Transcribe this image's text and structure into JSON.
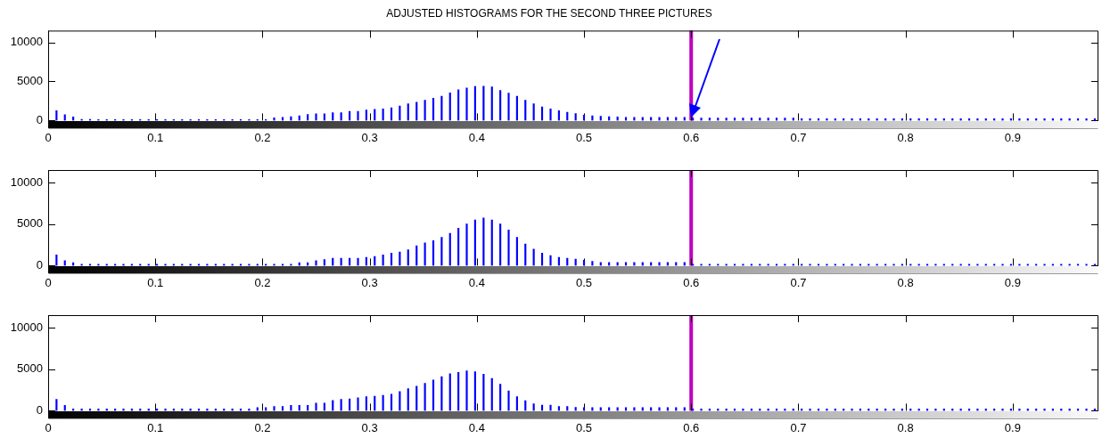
{
  "chart_data": [
    {
      "type": "bar",
      "title": "ADJUSTED HISTOGRAMS FOR THE SECOND THREE PICTURES",
      "x": [
        0.0078,
        0.0156,
        0.0234,
        0.0313,
        0.0391,
        0.0469,
        0.0547,
        0.0625,
        0.0703,
        0.0781,
        0.0859,
        0.0938,
        0.1016,
        0.1094,
        0.1172,
        0.125,
        0.1328,
        0.1406,
        0.1484,
        0.1563,
        0.1641,
        0.1719,
        0.1797,
        0.1875,
        0.1953,
        0.2031,
        0.2109,
        0.2188,
        0.2266,
        0.2344,
        0.2422,
        0.25,
        0.2578,
        0.2656,
        0.2734,
        0.2813,
        0.2891,
        0.2969,
        0.3047,
        0.3125,
        0.3203,
        0.3281,
        0.3359,
        0.3438,
        0.3516,
        0.3594,
        0.3672,
        0.375,
        0.3828,
        0.3906,
        0.3984,
        0.4063,
        0.4141,
        0.4219,
        0.4297,
        0.4375,
        0.4453,
        0.4531,
        0.4609,
        0.4688,
        0.4766,
        0.4844,
        0.4922,
        0.5,
        0.5078,
        0.5156,
        0.5234,
        0.5313,
        0.5391,
        0.5469,
        0.5547,
        0.5625,
        0.5703,
        0.5781,
        0.5859,
        0.5938,
        0.6016,
        0.6094,
        0.6172,
        0.625,
        0.6328,
        0.6406,
        0.6484,
        0.6563,
        0.6641,
        0.6719,
        0.6797,
        0.6875,
        0.6953,
        0.7031,
        0.7109,
        0.7188,
        0.7266,
        0.7344,
        0.7422,
        0.75,
        0.7578,
        0.7656,
        0.7734,
        0.7813,
        0.7891,
        0.7969,
        0.8047,
        0.8125,
        0.8203,
        0.8281,
        0.8359,
        0.8438,
        0.8516,
        0.8594,
        0.8672,
        0.875,
        0.8828,
        0.8906,
        0.8984,
        0.9063,
        0.9141,
        0.9219,
        0.9297,
        0.9375,
        0.9453,
        0.9531,
        0.9609,
        0.9688,
        0.9766
      ],
      "values": [
        1250,
        750,
        450,
        150,
        150,
        120,
        120,
        120,
        120,
        120,
        120,
        120,
        120,
        120,
        120,
        120,
        120,
        120,
        120,
        120,
        120,
        120,
        120,
        120,
        120,
        120,
        350,
        420,
        500,
        620,
        780,
        870,
        870,
        1000,
        1000,
        1170,
        1170,
        1350,
        1420,
        1500,
        1620,
        1850,
        2150,
        2350,
        2600,
        2850,
        3100,
        3550,
        3950,
        4150,
        4350,
        4380,
        4300,
        3850,
        3500,
        3100,
        2600,
        2150,
        1750,
        1500,
        1250,
        1050,
        880,
        700,
        600,
        550,
        500,
        450,
        400,
        400,
        400,
        400,
        400,
        400,
        400,
        400,
        320,
        320,
        320,
        320,
        320,
        320,
        320,
        320,
        320,
        320,
        320,
        320,
        320,
        230,
        230,
        230,
        230,
        230,
        230,
        230,
        230,
        230,
        230,
        230,
        230,
        230,
        230,
        230,
        230,
        230,
        230,
        230,
        230,
        230,
        230,
        230,
        230,
        230,
        230,
        230,
        230,
        230,
        230,
        230,
        230,
        230,
        230,
        230,
        230
      ],
      "color": "#0000ff",
      "xlim": [
        0,
        0.98
      ],
      "xticks": [
        0,
        0.1,
        0.2,
        0.3,
        0.4,
        0.5,
        0.6,
        0.7,
        0.8,
        0.9
      ],
      "ylim": [
        0,
        11500
      ],
      "yticks": [
        0,
        5000,
        10000
      ],
      "ref_lines": [
        {
          "axis": "x",
          "value": 0.6,
          "color": "#c000c0"
        }
      ]
    },
    {
      "type": "bar",
      "x": [
        0.0078,
        0.0156,
        0.0234,
        0.0313,
        0.0391,
        0.0469,
        0.0547,
        0.0625,
        0.0703,
        0.0781,
        0.0859,
        0.0938,
        0.1016,
        0.1094,
        0.1172,
        0.125,
        0.1328,
        0.1406,
        0.1484,
        0.1563,
        0.1641,
        0.1719,
        0.1797,
        0.1875,
        0.1953,
        0.2031,
        0.2109,
        0.2188,
        0.2266,
        0.2344,
        0.2422,
        0.25,
        0.2578,
        0.2656,
        0.2734,
        0.2813,
        0.2891,
        0.2969,
        0.3047,
        0.3125,
        0.3203,
        0.3281,
        0.3359,
        0.3438,
        0.3516,
        0.3594,
        0.3672,
        0.375,
        0.3828,
        0.3906,
        0.3984,
        0.4063,
        0.4141,
        0.4219,
        0.4297,
        0.4375,
        0.4453,
        0.4531,
        0.4609,
        0.4688,
        0.4766,
        0.4844,
        0.4922,
        0.5,
        0.5078,
        0.5156,
        0.5234,
        0.5313,
        0.5391,
        0.5469,
        0.5547,
        0.5625,
        0.5703,
        0.5781,
        0.5859,
        0.5938,
        0.6016,
        0.6094,
        0.6172,
        0.625,
        0.6328,
        0.6406,
        0.6484,
        0.6563,
        0.6641,
        0.6719,
        0.6797,
        0.6875,
        0.6953,
        0.7031,
        0.7109,
        0.7188,
        0.7266,
        0.7344,
        0.7422,
        0.75,
        0.7578,
        0.7656,
        0.7734,
        0.7813,
        0.7891,
        0.7969,
        0.8047,
        0.8125,
        0.8203,
        0.8281,
        0.8359,
        0.8438,
        0.8516,
        0.8594,
        0.8672,
        0.875,
        0.8828,
        0.8906,
        0.8984,
        0.9063,
        0.9141,
        0.9219,
        0.9297,
        0.9375,
        0.9453,
        0.9531,
        0.9609,
        0.9688,
        0.9766
      ],
      "values": [
        1300,
        600,
        350,
        170,
        170,
        170,
        170,
        170,
        170,
        170,
        170,
        170,
        170,
        170,
        170,
        170,
        170,
        170,
        170,
        170,
        170,
        170,
        170,
        170,
        170,
        170,
        170,
        170,
        170,
        350,
        350,
        600,
        730,
        900,
        900,
        900,
        900,
        1000,
        1100,
        1300,
        1500,
        1650,
        1900,
        2400,
        2750,
        3000,
        3400,
        3900,
        4500,
        5000,
        5500,
        5730,
        5500,
        5000,
        4300,
        3400,
        2600,
        2000,
        1500,
        1200,
        1000,
        900,
        780,
        650,
        520,
        390,
        390,
        390,
        390,
        390,
        390,
        390,
        390,
        390,
        390,
        390,
        170,
        170,
        170,
        170,
        170,
        170,
        170,
        170,
        170,
        170,
        170,
        170,
        170,
        170,
        170,
        170,
        170,
        170,
        170,
        170,
        170,
        170,
        170,
        170,
        170,
        170,
        170,
        170,
        170,
        170,
        170,
        170,
        170,
        170,
        170,
        170,
        170,
        170,
        170,
        170,
        170,
        170,
        170,
        170,
        170,
        170,
        170,
        170,
        170
      ],
      "color": "#0000ff",
      "xlim": [
        0,
        0.98
      ],
      "xticks": [
        0,
        0.1,
        0.2,
        0.3,
        0.4,
        0.5,
        0.6,
        0.7,
        0.8,
        0.9
      ],
      "ylim": [
        0,
        11500
      ],
      "yticks": [
        0,
        5000,
        10000
      ],
      "ref_lines": [
        {
          "axis": "x",
          "value": 0.6,
          "color": "#c000c0"
        }
      ]
    },
    {
      "type": "bar",
      "x": [
        0.0078,
        0.0156,
        0.0234,
        0.0313,
        0.0391,
        0.0469,
        0.0547,
        0.0625,
        0.0703,
        0.0781,
        0.0859,
        0.0938,
        0.1016,
        0.1094,
        0.1172,
        0.125,
        0.1328,
        0.1406,
        0.1484,
        0.1563,
        0.1641,
        0.1719,
        0.1797,
        0.1875,
        0.1953,
        0.2031,
        0.2109,
        0.2188,
        0.2266,
        0.2344,
        0.2422,
        0.25,
        0.2578,
        0.2656,
        0.2734,
        0.2813,
        0.2891,
        0.2969,
        0.3047,
        0.3125,
        0.3203,
        0.3281,
        0.3359,
        0.3438,
        0.3516,
        0.3594,
        0.3672,
        0.375,
        0.3828,
        0.3906,
        0.3984,
        0.4063,
        0.4141,
        0.4219,
        0.4297,
        0.4375,
        0.4453,
        0.4531,
        0.4609,
        0.4688,
        0.4766,
        0.4844,
        0.4922,
        0.5,
        0.5078,
        0.5156,
        0.5234,
        0.5313,
        0.5391,
        0.5469,
        0.5547,
        0.5625,
        0.5703,
        0.5781,
        0.5859,
        0.5938,
        0.6016,
        0.6094,
        0.6172,
        0.625,
        0.6328,
        0.6406,
        0.6484,
        0.6563,
        0.6641,
        0.6719,
        0.6797,
        0.6875,
        0.6953,
        0.7031,
        0.7109,
        0.7188,
        0.7266,
        0.7344,
        0.7422,
        0.75,
        0.7578,
        0.7656,
        0.7734,
        0.7813,
        0.7891,
        0.7969,
        0.8047,
        0.8125,
        0.8203,
        0.8281,
        0.8359,
        0.8438,
        0.8516,
        0.8594,
        0.8672,
        0.875,
        0.8828,
        0.8906,
        0.8984,
        0.9063,
        0.9141,
        0.9219,
        0.9297,
        0.9375,
        0.9453,
        0.9531,
        0.9609,
        0.9688,
        0.9766
      ],
      "values": [
        1360,
        640,
        210,
        210,
        210,
        210,
        210,
        210,
        210,
        210,
        210,
        210,
        210,
        210,
        210,
        210,
        210,
        210,
        210,
        210,
        210,
        210,
        210,
        210,
        380,
        380,
        510,
        510,
        640,
        640,
        640,
        930,
        930,
        1230,
        1360,
        1420,
        1550,
        1700,
        1740,
        1850,
        2000,
        2300,
        2650,
        2950,
        3300,
        3700,
        4100,
        4450,
        4600,
        4790,
        4700,
        4400,
        3900,
        3200,
        2400,
        1700,
        1200,
        850,
        680,
        680,
        510,
        510,
        400,
        380,
        380,
        380,
        380,
        380,
        380,
        380,
        380,
        380,
        380,
        380,
        380,
        380,
        210,
        210,
        210,
        210,
        210,
        210,
        210,
        210,
        210,
        210,
        210,
        210,
        210,
        210,
        210,
        210,
        210,
        210,
        210,
        210,
        210,
        210,
        210,
        210,
        210,
        210,
        210,
        210,
        210,
        210,
        210,
        210,
        210,
        210,
        210,
        210,
        210,
        210,
        210,
        210,
        210,
        210,
        210,
        210,
        210,
        210,
        210,
        210,
        210
      ],
      "color": "#0000ff",
      "xlim": [
        0,
        0.98
      ],
      "xticks": [
        0,
        0.1,
        0.2,
        0.3,
        0.4,
        0.5,
        0.6,
        0.7,
        0.8,
        0.9
      ],
      "ylim": [
        0,
        11500
      ],
      "yticks": [
        0,
        5000,
        10000
      ],
      "ref_lines": [
        {
          "axis": "x",
          "value": 0.6,
          "color": "#c000c0"
        }
      ]
    }
  ]
}
